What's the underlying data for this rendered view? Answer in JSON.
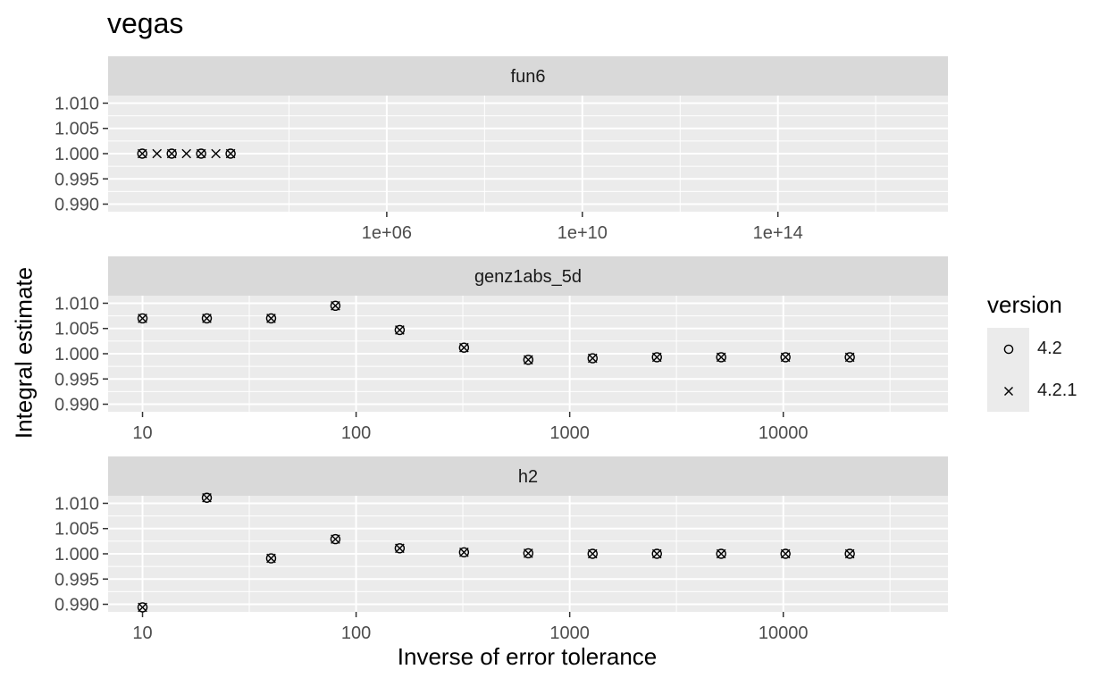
{
  "chart_data": {
    "type": "scatter",
    "title": "vegas",
    "xlabel": "Inverse of error tolerance",
    "ylabel": "Integral estimate",
    "legend": {
      "title": "version",
      "position": "right",
      "entries": [
        {
          "label": "4.2",
          "shape": "circle"
        },
        {
          "label": "4.2.1",
          "shape": "cross"
        }
      ]
    },
    "x_scale": "log10",
    "y_ticks": [
      "0.990",
      "0.995",
      "1.000",
      "1.005",
      "1.010"
    ],
    "y_tick_values": [
      0.99,
      0.995,
      1.0,
      1.005,
      1.01
    ],
    "ylim": [
      0.9885,
      1.0115
    ],
    "grid": true,
    "panels": [
      {
        "strip": "fun6",
        "xlim": [
          2,
          3e+17
        ],
        "x_ticks": [
          "1e+06",
          "1e+10",
          "1e+14"
        ],
        "x_tick_values": [
          1000000.0,
          10000000000.0,
          100000000000000.0
        ],
        "x_minor_values": [
          10000.0,
          100000000.0,
          1000000000000.0,
          1e+16
        ],
        "series": [
          {
            "name": "4.2",
            "shape": "circle",
            "x": [
              10,
              40,
              160,
              640
            ],
            "y": [
              1.0,
              1.0,
              1.0,
              1.0
            ]
          },
          {
            "name": "4.2.1",
            "shape": "cross",
            "x": [
              10,
              20,
              40,
              80,
              160,
              320,
              640
            ],
            "y": [
              1.0,
              1.0,
              1.0,
              1.0,
              1.0,
              1.0,
              1.0
            ]
          }
        ]
      },
      {
        "strip": "genz1abs_5d",
        "xlim": [
          6.9,
          59000
        ],
        "x_ticks": [
          "10",
          "100",
          "1000",
          "10000"
        ],
        "x_tick_values": [
          10,
          100,
          1000,
          10000
        ],
        "x_minor_values": [
          31.6,
          316,
          3160,
          31600
        ],
        "series": [
          {
            "name": "4.2",
            "shape": "circle",
            "x": [
              10,
              20,
              40,
              80,
              160,
              320,
              640,
              1280,
              2560,
              5120,
              10240,
              20480
            ],
            "y": [
              1.007,
              1.007,
              1.007,
              1.0095,
              1.0047,
              1.0012,
              0.9988,
              0.9991,
              0.9993,
              0.9993,
              0.9993,
              0.9993
            ]
          },
          {
            "name": "4.2.1",
            "shape": "cross",
            "x": [
              10,
              20,
              40,
              80,
              160,
              320,
              640,
              1280,
              2560,
              5120,
              10240,
              20480
            ],
            "y": [
              1.007,
              1.007,
              1.007,
              1.0095,
              1.0047,
              1.0012,
              0.9988,
              0.9991,
              0.9993,
              0.9993,
              0.9993,
              0.9993
            ]
          }
        ]
      },
      {
        "strip": "h2",
        "xlim": [
          6.9,
          59000
        ],
        "x_ticks": [
          "10",
          "100",
          "1000",
          "10000"
        ],
        "x_tick_values": [
          10,
          100,
          1000,
          10000
        ],
        "x_minor_values": [
          31.6,
          316,
          3160,
          31600
        ],
        "series": [
          {
            "name": "4.2",
            "shape": "circle",
            "x": [
              10,
              20,
              40,
              80,
              160,
              320,
              640,
              1280,
              2560,
              5120,
              10240,
              20480
            ],
            "y": [
              0.9894,
              1.0111,
              0.9991,
              1.0029,
              1.0011,
              1.0003,
              1.0001,
              1.0,
              1.0,
              1.0,
              1.0,
              1.0
            ]
          },
          {
            "name": "4.2.1",
            "shape": "cross",
            "x": [
              10,
              20,
              40,
              80,
              160,
              320,
              640,
              1280,
              2560,
              5120,
              10240,
              20480
            ],
            "y": [
              0.9894,
              1.0111,
              0.9991,
              1.0029,
              1.0011,
              1.0003,
              1.0001,
              1.0,
              1.0,
              1.0,
              1.0,
              1.0
            ]
          }
        ]
      }
    ]
  },
  "colors": {
    "panel_bg": "#ebebeb",
    "strip_bg": "#d9d9d9",
    "grid": "#ffffff",
    "tick_text": "#4d4d4d",
    "tick_mark": "#333333",
    "point": "#000000"
  }
}
